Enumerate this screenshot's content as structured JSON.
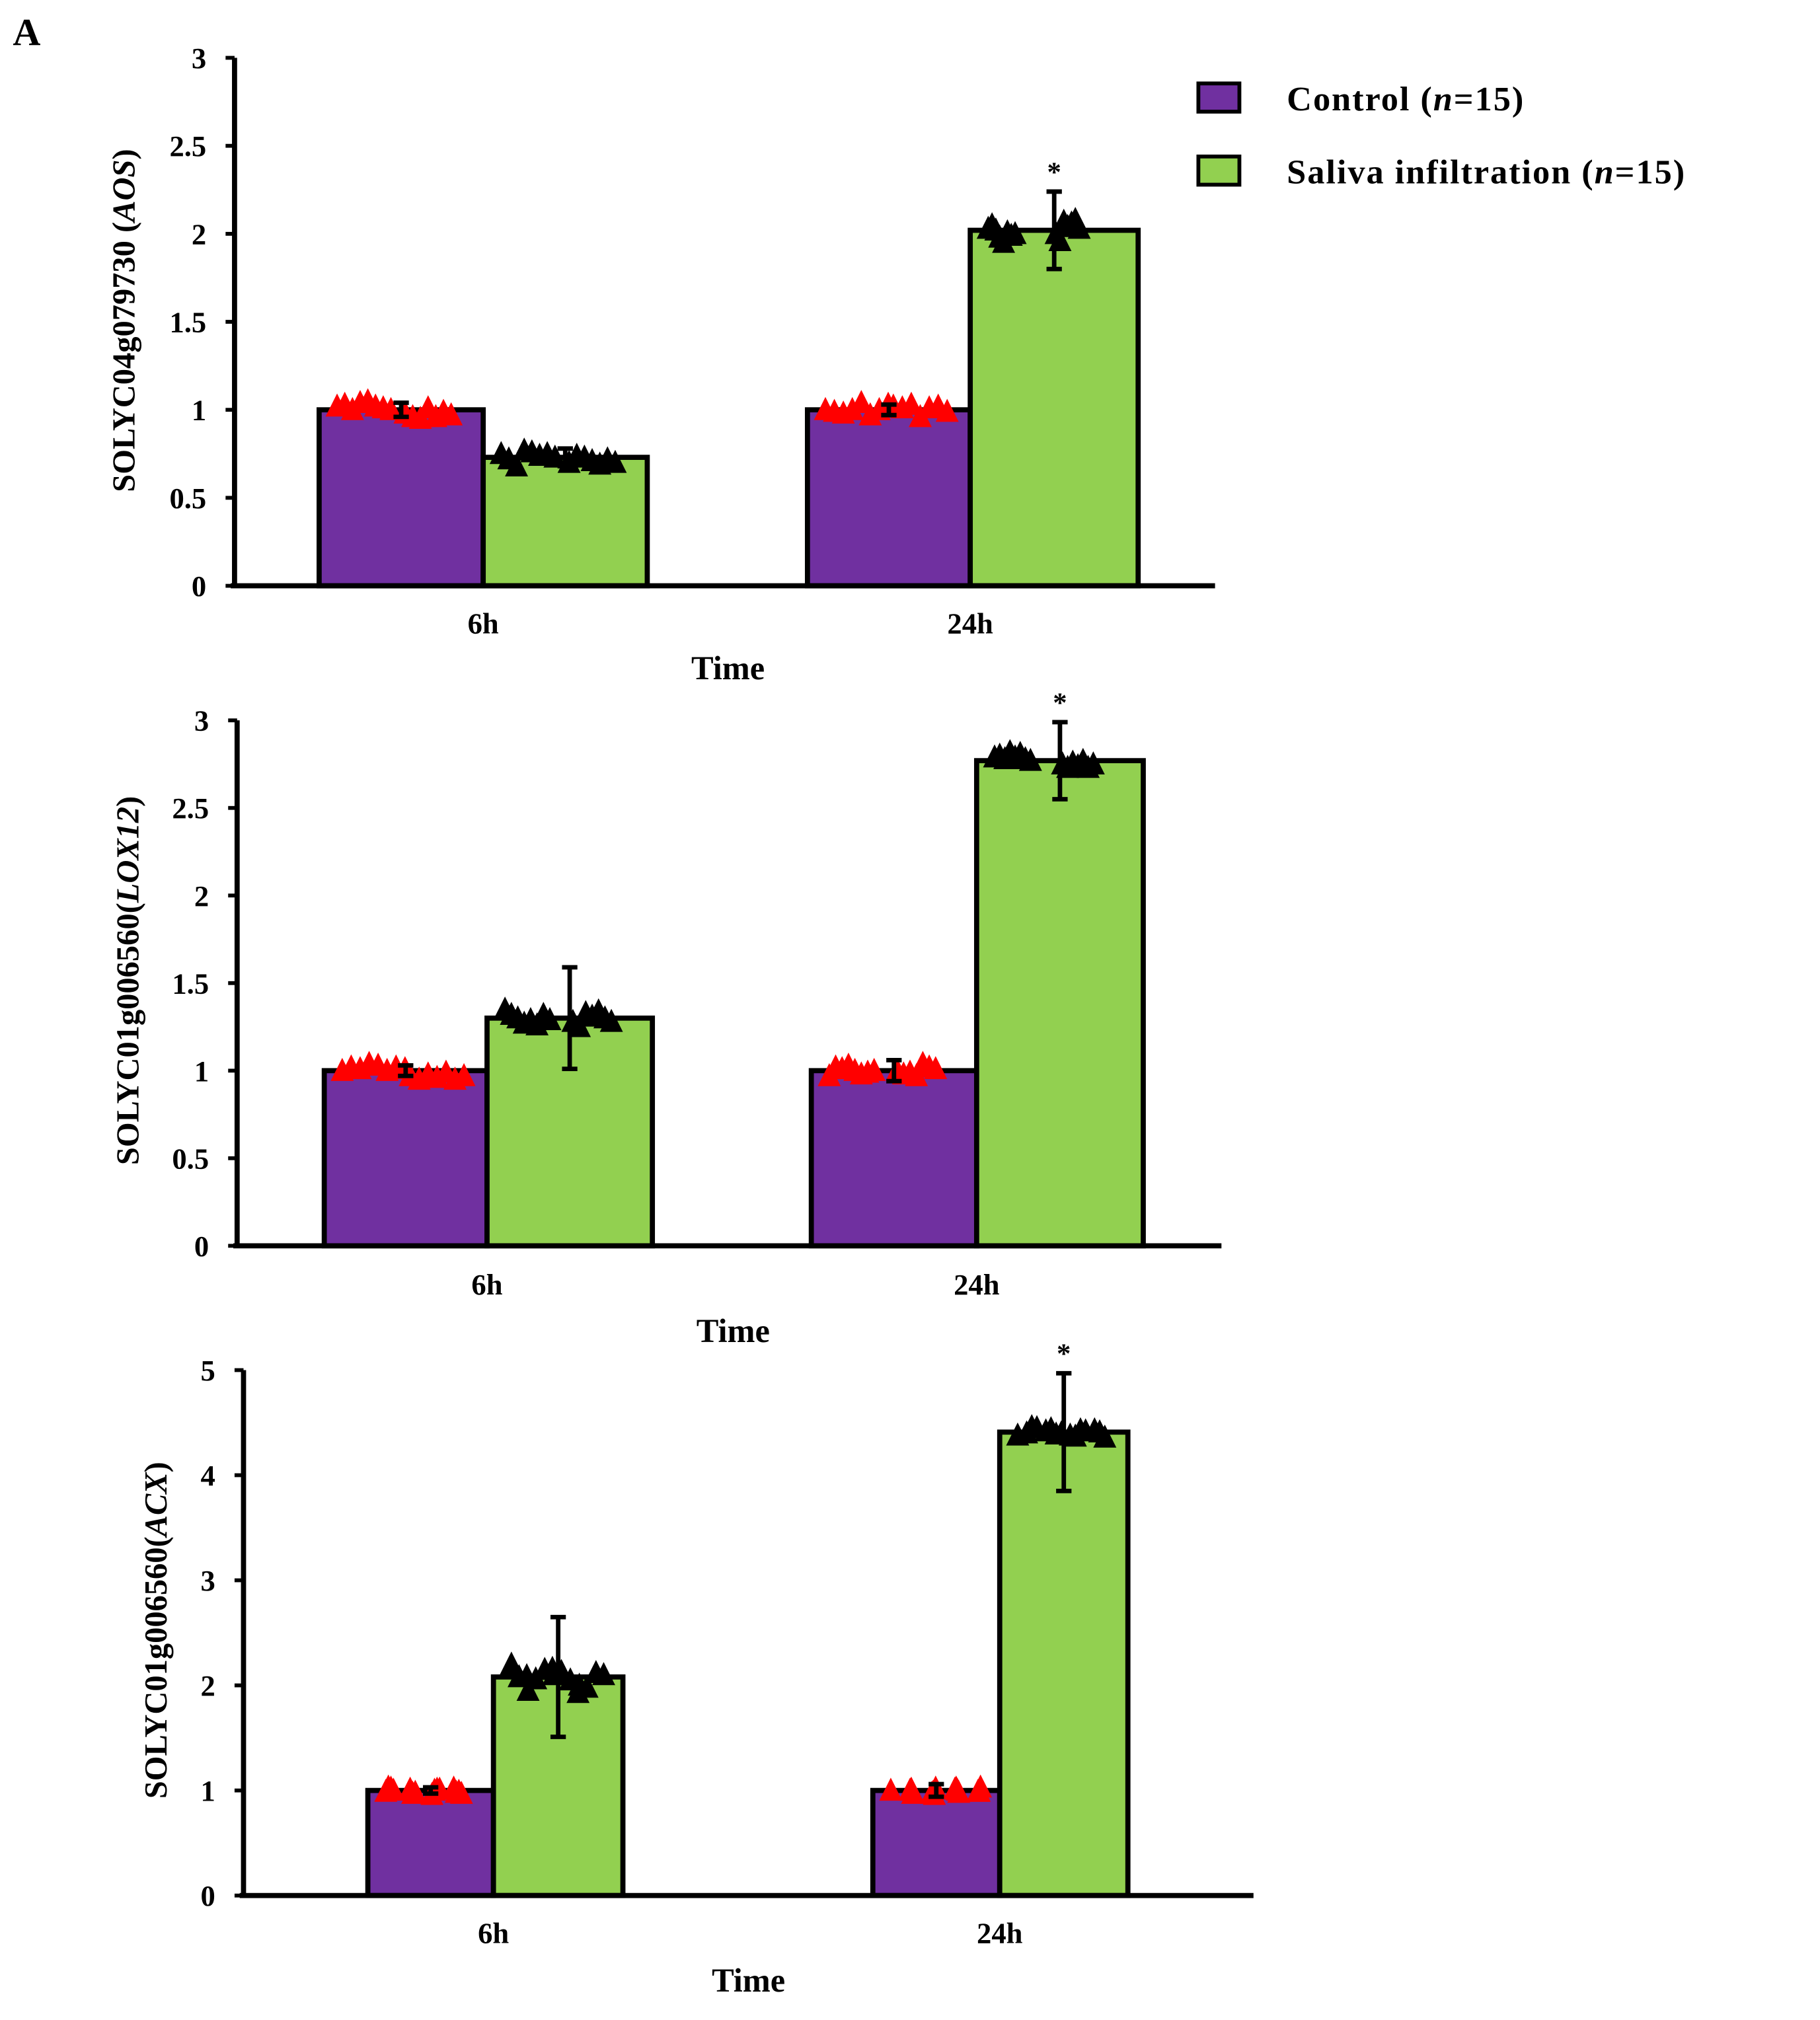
{
  "panel_label": "A",
  "legend": [
    {
      "label": "Control (",
      "n": "n",
      "rest": "=15)",
      "color": "#7030a0"
    },
    {
      "label": "Saliva infiltration  (",
      "n": "n",
      "rest": "=15)",
      "color": "#92d050"
    }
  ],
  "colors": {
    "control": "#7030a0",
    "saliva": "#92d050",
    "control_points": "#ff0000",
    "saliva_points": "#000000"
  },
  "chart_data": [
    {
      "type": "bar",
      "ylabel_prefix": "SOLYC04g079730 (",
      "ylabel_gene": "AOS",
      "ylabel_suffix": ")",
      "xlabel": "Time",
      "categories": [
        "6h",
        "24h"
      ],
      "ylim": [
        0,
        3
      ],
      "yticks": [
        "0",
        "0.5",
        "1",
        "1.5",
        "2",
        "2.5",
        "3"
      ],
      "series": [
        {
          "name": "Control",
          "values": [
            1.0,
            1.0
          ],
          "errors": [
            0.04,
            0.03
          ],
          "points": [
            [
              1.02,
              0.98,
              1.03,
              0.96,
              1.0,
              0.95,
              1.04,
              1.01,
              1.05,
              0.96,
              1.02,
              0.99,
              1.01,
              0.97,
              1.0
            ],
            [
              1.0,
              1.02,
              0.99,
              1.01,
              0.98,
              1.03,
              1.0,
              0.96,
              1.04,
              1.01,
              0.97,
              1.02,
              1.0,
              0.99,
              1.03
            ]
          ]
        },
        {
          "name": "Saliva infiltration",
          "values": [
            0.73,
            2.02
          ],
          "errors": [
            0.05,
            0.22
          ],
          "points": [
            [
              0.75,
              0.7,
              0.72,
              0.74,
              0.68,
              0.73,
              0.77,
              0.71,
              0.76,
              0.69,
              0.74,
              0.72,
              0.75,
              0.7,
              0.73
            ],
            [
              2.03,
              2.0,
              2.05,
              1.96,
              2.02,
              2.07,
              1.98,
              2.04,
              1.95,
              2.06,
              2.01,
              2.08,
              1.99,
              2.03,
              2.0
            ]
          ]
        }
      ],
      "significance": [
        "",
        "*"
      ]
    },
    {
      "type": "bar",
      "ylabel_prefix": "SOLYC01g006560(",
      "ylabel_gene": "LOX12",
      "ylabel_suffix": ")",
      "xlabel": "Time",
      "categories": [
        "6h",
        "24h"
      ],
      "ylim": [
        0,
        3
      ],
      "yticks": [
        "0",
        "0.5",
        "1",
        "1.5",
        "2",
        "2.5",
        "3"
      ],
      "series": [
        {
          "name": "Control",
          "values": [
            1.0,
            1.0
          ],
          "errors": [
            0.03,
            0.06
          ],
          "points": [
            [
              1.0,
              0.97,
              1.02,
              0.95,
              1.01,
              0.98,
              1.04,
              0.96,
              1.03,
              0.99,
              1.0,
              0.95,
              1.02,
              0.97,
              1.01
            ],
            [
              0.97,
              1.0,
              1.02,
              0.98,
              1.01,
              0.99,
              1.03,
              0.97,
              1.0,
              1.04,
              0.98,
              1.02,
              0.99,
              1.01,
              1.0
            ]
          ]
        },
        {
          "name": "Saliva infiltration",
          "values": [
            1.3,
            2.77
          ],
          "errors": [
            0.29,
            0.22
          ],
          "points": [
            [
              1.35,
              1.28,
              1.32,
              1.25,
              1.3,
              1.33,
              1.27,
              1.31,
              1.29,
              1.34,
              1.26,
              1.3,
              1.32,
              1.28,
              1.29
            ],
            [
              2.79,
              2.75,
              2.8,
              2.73,
              2.78,
              2.76,
              2.82,
              2.74,
              2.79,
              2.77,
              2.81,
              2.73,
              2.78,
              2.75,
              2.77
            ]
          ]
        }
      ],
      "significance": [
        "",
        "*"
      ]
    },
    {
      "type": "bar",
      "ylabel_prefix": "SOLYC01g006560(",
      "ylabel_gene": "ACX",
      "ylabel_suffix": ")",
      "xlabel": "Time",
      "categories": [
        "6h",
        "24h"
      ],
      "ylim": [
        0,
        5
      ],
      "yticks": [
        "0",
        "1",
        "2",
        "3",
        "4",
        "5"
      ],
      "series": [
        {
          "name": "Control",
          "values": [
            1.0,
            1.0
          ],
          "errors": [
            0.03,
            0.06
          ],
          "points": [
            [
              0.99,
              1.02,
              0.96,
              1.01,
              1.03,
              0.98,
              1.0,
              0.97,
              1.02,
              0.99,
              1.01,
              0.98,
              1.0,
              0.97,
              1.01
            ],
            [
              1.0,
              0.98,
              1.02,
              0.97,
              1.03,
              1.0,
              0.96,
              1.01,
              0.99,
              1.02,
              0.98,
              1.0,
              0.99,
              1.01,
              0.97
            ]
          ]
        },
        {
          "name": "Saliva infiltration",
          "values": [
            2.08,
            4.41
          ],
          "errors": [
            0.57,
            0.56
          ],
          "points": [
            [
              2.2,
              2.0,
              2.1,
              1.95,
              2.12,
              2.05,
              2.15,
              2.08,
              1.98,
              2.13,
              2.06,
              2.1,
              1.93,
              2.16,
              2.09
            ],
            [
              4.38,
              4.42,
              4.4,
              4.45,
              4.36,
              4.43,
              4.39,
              4.46,
              4.41,
              4.37,
              4.44,
              4.4,
              4.43,
              4.38,
              4.42
            ]
          ]
        }
      ],
      "significance": [
        "",
        "*"
      ]
    }
  ]
}
